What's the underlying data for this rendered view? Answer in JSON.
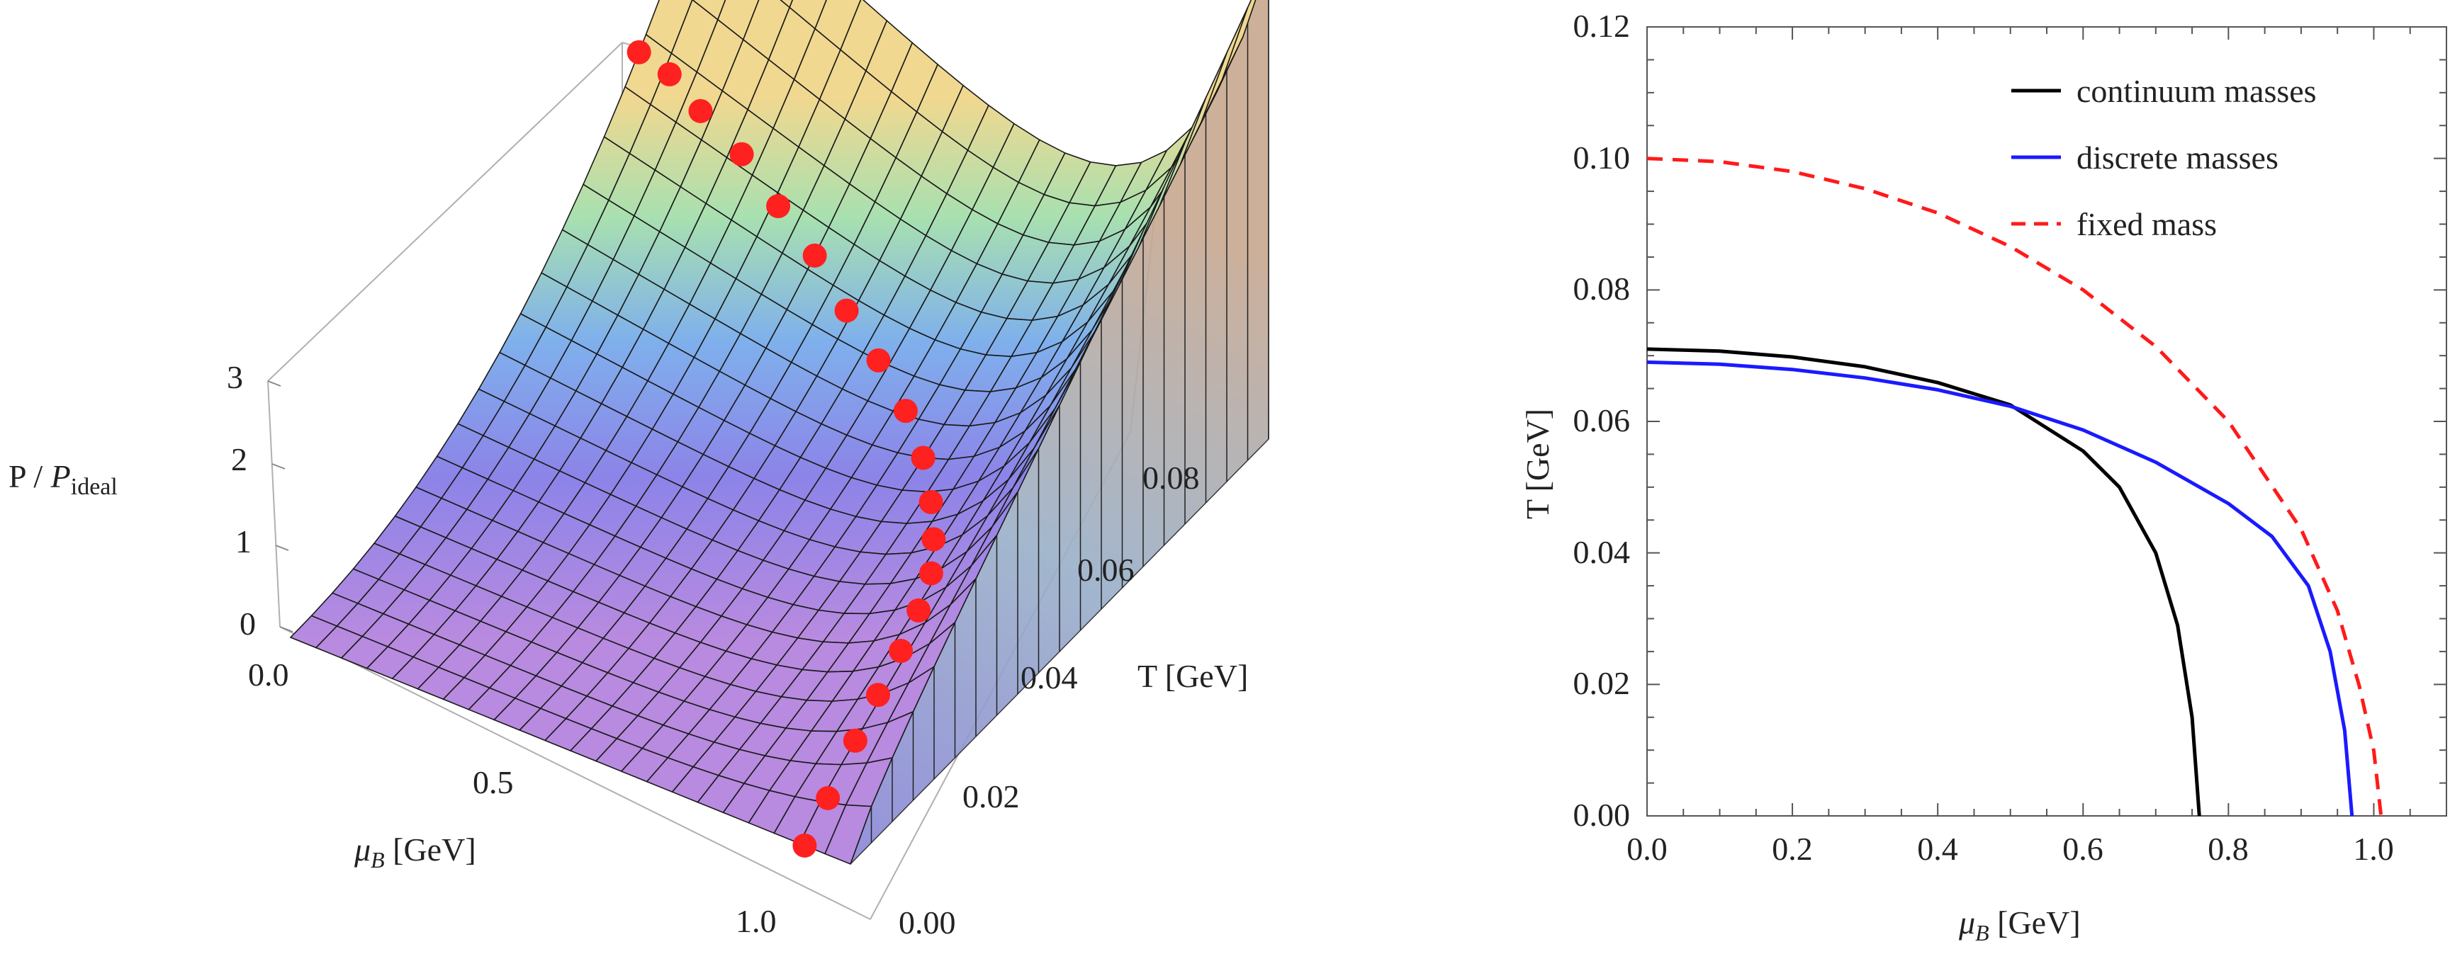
{
  "colors": {
    "continuum": "#000000",
    "discrete": "#1a1aff",
    "fixed": "#ff1a1a",
    "points": "#ff2020",
    "frame": "#b0b0b0"
  },
  "chart_data": [
    {
      "type": "surface3d",
      "zlabel_main": "P / ",
      "zlabel_italic": "P",
      "zlabel_sub": "ideal",
      "tlabel": "T [GeV]",
      "xlabel_mu": "μ",
      "xlabel_sub": "B",
      "xlabel_unit": " [GeV]",
      "z_ticks": [
        "3",
        "2",
        "1",
        "0"
      ],
      "mu_ticks": [
        "0.0",
        "0.5",
        "1.0"
      ],
      "t_ticks": [
        "0.08",
        "0.06",
        "0.04",
        "0.02",
        "0.00"
      ],
      "mu_range": [
        0,
        1.1
      ],
      "t_range": [
        0,
        0.09
      ],
      "z_range": [
        0,
        3
      ],
      "critical_points": [
        {
          "mu": 1.01,
          "t": 0.0
        },
        {
          "mu": 1.01,
          "t": 0.005
        },
        {
          "mu": 1.0,
          "t": 0.012
        },
        {
          "mu": 0.99,
          "t": 0.018
        },
        {
          "mu": 0.98,
          "t": 0.024
        },
        {
          "mu": 0.96,
          "t": 0.03
        },
        {
          "mu": 0.93,
          "t": 0.036
        },
        {
          "mu": 0.88,
          "t": 0.042
        },
        {
          "mu": 0.82,
          "t": 0.048
        },
        {
          "mu": 0.75,
          "t": 0.054
        },
        {
          "mu": 0.67,
          "t": 0.059
        },
        {
          "mu": 0.58,
          "t": 0.063
        },
        {
          "mu": 0.49,
          "t": 0.066
        },
        {
          "mu": 0.4,
          "t": 0.069
        },
        {
          "mu": 0.31,
          "t": 0.071
        },
        {
          "mu": 0.22,
          "t": 0.073
        },
        {
          "mu": 0.13,
          "t": 0.074
        },
        {
          "mu": 0.06,
          "t": 0.075
        },
        {
          "mu": 0.0,
          "t": 0.075
        }
      ]
    },
    {
      "type": "line",
      "xlabel_mu": "μ",
      "xlabel_sub": "B",
      "xlabel_unit": " [GeV]",
      "ylabel": "T [GeV]",
      "xlim": [
        0,
        1.1
      ],
      "ylim": [
        0,
        0.12
      ],
      "x_ticks": [
        "0.0",
        "0.2",
        "0.4",
        "0.6",
        "0.8",
        "1.0"
      ],
      "y_ticks": [
        "0.00",
        "0.02",
        "0.04",
        "0.06",
        "0.08",
        "0.10",
        "0.12"
      ],
      "legend": [
        "continuum masses",
        "discrete masses",
        "fixed mass"
      ],
      "series": [
        {
          "name": "continuum masses",
          "style": "solid",
          "x": [
            0,
            0.1,
            0.2,
            0.3,
            0.4,
            0.5,
            0.6,
            0.65,
            0.7,
            0.73,
            0.75,
            0.76
          ],
          "y": [
            0.071,
            0.0707,
            0.0698,
            0.0683,
            0.0659,
            0.0625,
            0.0555,
            0.05,
            0.04,
            0.029,
            0.015,
            0.0
          ]
        },
        {
          "name": "discrete masses",
          "style": "solid",
          "x": [
            0,
            0.1,
            0.2,
            0.3,
            0.4,
            0.5,
            0.6,
            0.7,
            0.8,
            0.86,
            0.91,
            0.94,
            0.96,
            0.97
          ],
          "y": [
            0.069,
            0.0687,
            0.0679,
            0.0666,
            0.0648,
            0.0623,
            0.0587,
            0.0538,
            0.0475,
            0.0425,
            0.035,
            0.025,
            0.013,
            0.0
          ]
        },
        {
          "name": "fixed mass",
          "style": "dashed",
          "x": [
            0,
            0.1,
            0.2,
            0.3,
            0.4,
            0.5,
            0.6,
            0.7,
            0.8,
            0.9,
            0.95,
            0.98,
            1.0,
            1.01
          ],
          "y": [
            0.1,
            0.0995,
            0.098,
            0.0954,
            0.0917,
            0.0866,
            0.08,
            0.0714,
            0.06,
            0.0436,
            0.0312,
            0.0198,
            0.0099,
            0.0
          ]
        }
      ]
    }
  ]
}
